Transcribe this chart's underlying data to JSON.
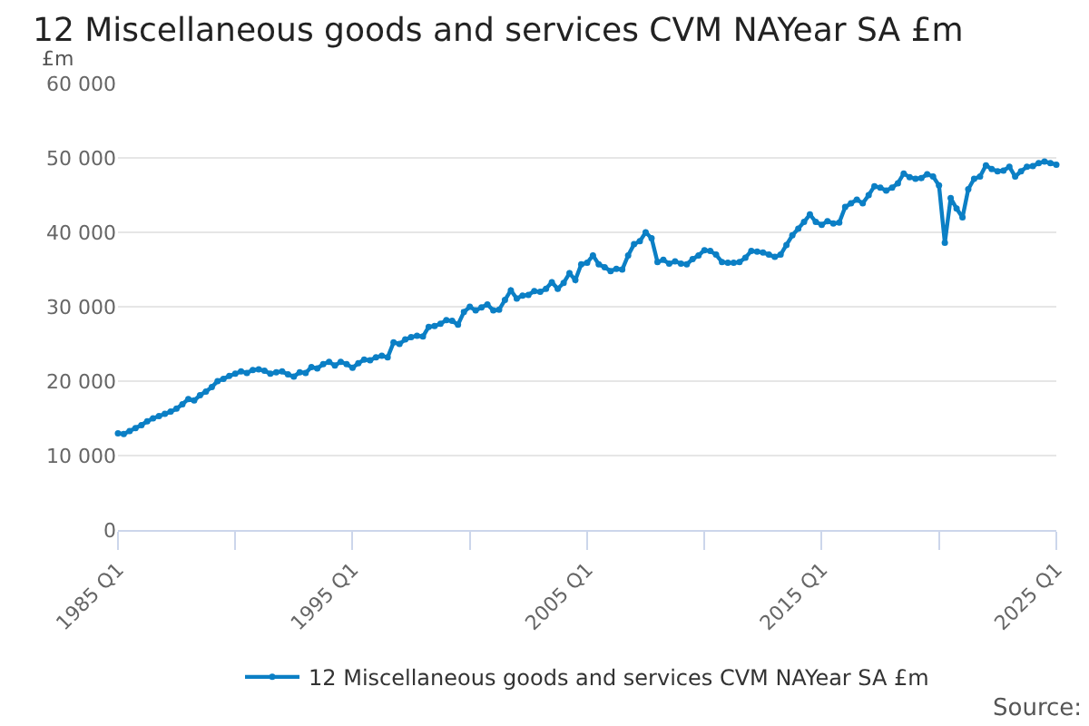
{
  "chart_data": {
    "type": "line",
    "title": "12 Miscellaneous goods and services CVM NAYear SA £m",
    "ylabel": "£m",
    "x": [
      "1985-01",
      "1985-04",
      "1985-07",
      "1985-10",
      "1986-01",
      "1986-04",
      "1986-07",
      "1986-10",
      "1987-01",
      "1987-04",
      "1987-07",
      "1987-10",
      "1988-01",
      "1988-04",
      "1988-07",
      "1988-10",
      "1989-01",
      "1989-04",
      "1989-07",
      "1989-10",
      "1990-01",
      "1990-04",
      "1990-07",
      "1990-10",
      "1991-01",
      "1991-04",
      "1991-07",
      "1991-10",
      "1992-01",
      "1992-04",
      "1992-07",
      "1992-10",
      "1993-01",
      "1993-04",
      "1993-07",
      "1993-10",
      "1994-01",
      "1994-04",
      "1994-07",
      "1994-10",
      "1995-01",
      "1995-04",
      "1995-07",
      "1995-10",
      "1996-01",
      "1996-04",
      "1996-07",
      "1996-10",
      "1997-01",
      "1997-04",
      "1997-07",
      "1997-10",
      "1998-01",
      "1998-04",
      "1998-07",
      "1998-10",
      "1999-01",
      "1999-04",
      "1999-07",
      "1999-10",
      "2000-01",
      "2000-04",
      "2000-07",
      "2000-10",
      "2001-01",
      "2001-04",
      "2001-07",
      "2001-10",
      "2002-01",
      "2002-04",
      "2002-07",
      "2002-10",
      "2003-01",
      "2003-04",
      "2003-07",
      "2003-10",
      "2004-01",
      "2004-04",
      "2004-07",
      "2004-10",
      "2005-01",
      "2005-04",
      "2005-07",
      "2005-10",
      "2006-01",
      "2006-04",
      "2006-07",
      "2006-10",
      "2007-01",
      "2007-04",
      "2007-07",
      "2007-10",
      "2008-01",
      "2008-04",
      "2008-07",
      "2008-10",
      "2009-01",
      "2009-04",
      "2009-07",
      "2009-10",
      "2010-01",
      "2010-04",
      "2010-07",
      "2010-10",
      "2011-01",
      "2011-04",
      "2011-07",
      "2011-10",
      "2012-01",
      "2012-04",
      "2012-07",
      "2012-10",
      "2013-01",
      "2013-04",
      "2013-07",
      "2013-10",
      "2014-01",
      "2014-04",
      "2014-07",
      "2014-10",
      "2015-01",
      "2015-04",
      "2015-07",
      "2015-10",
      "2016-01",
      "2016-04",
      "2016-07",
      "2016-10",
      "2017-01",
      "2017-04",
      "2017-07",
      "2017-10",
      "2018-01",
      "2018-04",
      "2018-07",
      "2018-10",
      "2019-01",
      "2019-04",
      "2019-07",
      "2019-10",
      "2020-01",
      "2020-04",
      "2020-07",
      "2020-10",
      "2021-01",
      "2021-04",
      "2021-07",
      "2021-10",
      "2022-01",
      "2022-04",
      "2022-07",
      "2022-10",
      "2023-01",
      "2023-04",
      "2023-07",
      "2023-10",
      "2024-01",
      "2024-04",
      "2024-07",
      "2024-10",
      "2025-01"
    ],
    "series": [
      {
        "name": "12 Miscellaneous goods and services CVM NAYear SA £m",
        "color": "#0b7fc5",
        "values": [
          13000,
          12900,
          13300,
          13700,
          14100,
          14600,
          15000,
          15300,
          15600,
          15900,
          16300,
          16900,
          17600,
          17400,
          18100,
          18600,
          19200,
          20000,
          20300,
          20700,
          21000,
          21300,
          21100,
          21500,
          21600,
          21400,
          21000,
          21200,
          21300,
          20900,
          20600,
          21200,
          21100,
          21900,
          21700,
          22300,
          22600,
          22100,
          22600,
          22300,
          21800,
          22400,
          22900,
          22800,
          23200,
          23400,
          23200,
          25200,
          25000,
          25600,
          25900,
          26100,
          26000,
          27300,
          27400,
          27700,
          28200,
          28100,
          27600,
          29300,
          30000,
          29500,
          29900,
          30300,
          29500,
          29600,
          30900,
          32200,
          31100,
          31500,
          31600,
          32100,
          32000,
          32400,
          33300,
          32400,
          33200,
          34500,
          33600,
          35700,
          35900,
          36900,
          35700,
          35300,
          34800,
          35100,
          35000,
          36900,
          38400,
          38800,
          40000,
          39200,
          36000,
          36300,
          35800,
          36100,
          35800,
          35700,
          36400,
          36900,
          37600,
          37500,
          37000,
          36000,
          35900,
          35900,
          36000,
          36600,
          37500,
          37400,
          37300,
          37000,
          36700,
          37000,
          38300,
          39600,
          40500,
          41400,
          42400,
          41400,
          41000,
          41500,
          41200,
          41300,
          43400,
          43900,
          44400,
          43900,
          45000,
          46200,
          46000,
          45600,
          46000,
          46600,
          47900,
          47400,
          47200,
          47300,
          47800,
          47500,
          46300,
          38600,
          44600,
          43200,
          42000,
          45800,
          47200,
          47500,
          49000,
          48500,
          48200,
          48300,
          48800,
          47500,
          48200,
          48800,
          48900,
          49300,
          49500,
          49300,
          49100
        ]
      }
    ],
    "xlim": [
      "1985-01",
      "2025-01"
    ],
    "xticks": [
      {
        "value": "1985-01",
        "label": "1985 Q1"
      },
      {
        "value": "1990-01",
        "label": null
      },
      {
        "value": "1995-01",
        "label": "1995 Q1"
      },
      {
        "value": "2000-01",
        "label": null
      },
      {
        "value": "2005-01",
        "label": "2005 Q1"
      },
      {
        "value": "2010-01",
        "label": null
      },
      {
        "value": "2015-01",
        "label": "2015 Q1"
      },
      {
        "value": "2020-01",
        "label": null
      },
      {
        "value": "2025-01",
        "label": "2025 Q1"
      }
    ],
    "ylim": [
      0,
      60000
    ],
    "yticks": [
      0,
      {
        "value": 10000,
        "label": "10 000"
      },
      {
        "value": 20000,
        "label": "20 000"
      },
      {
        "value": 30000,
        "label": "30 000"
      },
      {
        "value": 40000,
        "label": "40 000"
      },
      {
        "value": 50000,
        "label": "50 000"
      },
      {
        "value": 60000,
        "label": "60 000"
      }
    ],
    "grid": "y",
    "legend": "bottom",
    "marker": "circle",
    "line_style": "solid",
    "annotations": [
      "Source:"
    ]
  }
}
